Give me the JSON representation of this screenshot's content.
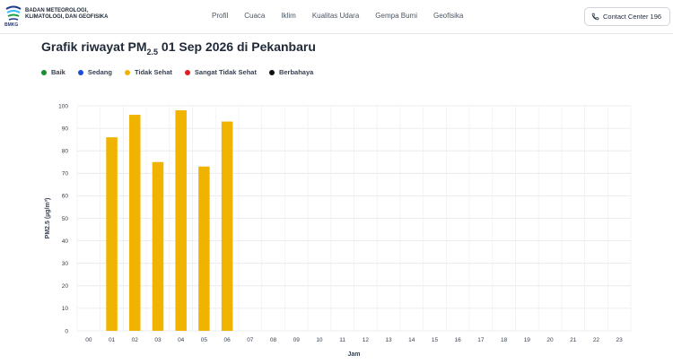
{
  "header": {
    "brand_line1": "BADAN METEOROLOGI,",
    "brand_line2": "KLIMATOLOGI, DAN GEOFISIKA",
    "logo_text": "BMKG",
    "nav": [
      "Profil",
      "Cuaca",
      "Iklim",
      "Kualitas Udara",
      "Gempa Bumi",
      "Geofisika"
    ],
    "contact_label": "Contact Center 196"
  },
  "title": {
    "prefix": "Grafik riwayat PM",
    "subscript": "2.5",
    "suffix": " 01 Sep 2026 di Pekanbaru"
  },
  "legend": [
    {
      "label": "Baik",
      "color": "#1a8f2c"
    },
    {
      "label": "Sedang",
      "color": "#1d4ed8"
    },
    {
      "label": "Tidak Sehat",
      "color": "#f0b400"
    },
    {
      "label": "Sangat Tidak Sehat",
      "color": "#e11d1d"
    },
    {
      "label": "Berbahaya",
      "color": "#111111"
    }
  ],
  "chart_data": {
    "type": "bar",
    "categories": [
      "00",
      "01",
      "02",
      "03",
      "04",
      "05",
      "06",
      "07",
      "08",
      "09",
      "10",
      "11",
      "12",
      "13",
      "14",
      "15",
      "16",
      "17",
      "18",
      "19",
      "20",
      "21",
      "22",
      "23"
    ],
    "values": [
      null,
      86,
      96,
      75,
      98,
      73,
      93,
      null,
      null,
      null,
      null,
      null,
      null,
      null,
      null,
      null,
      null,
      null,
      null,
      null,
      null,
      null,
      null,
      null
    ],
    "bar_color": "#f0b400",
    "xlabel": "Jam",
    "ylabel": "PM2.5 (µg/m³)",
    "ylim": [
      0,
      100
    ],
    "yticks": [
      0,
      10,
      20,
      30,
      40,
      50,
      60,
      70,
      80,
      90,
      100
    ],
    "grid": true
  }
}
